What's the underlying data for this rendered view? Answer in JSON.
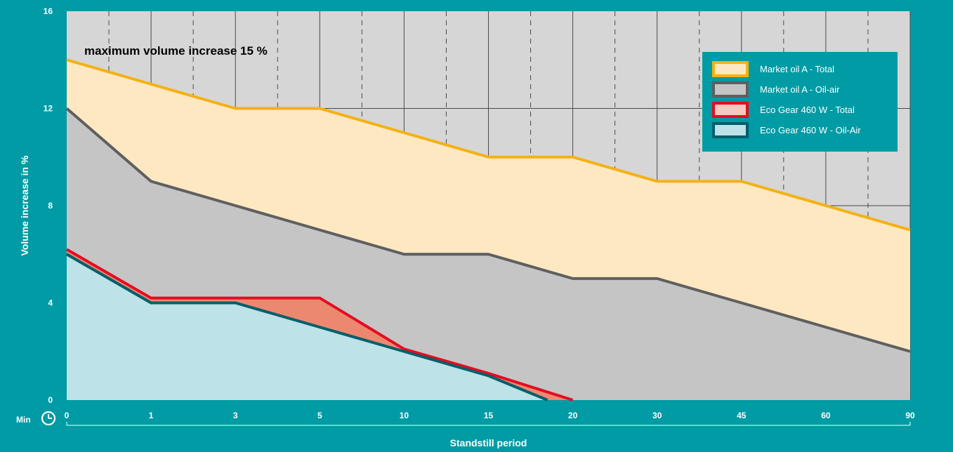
{
  "chart_data": {
    "type": "area",
    "annotation": "maximum volume increase 15 %",
    "xlabel": "Standstill period",
    "x_unit_label": "Min",
    "ylabel": "Volume increase in %",
    "categories": [
      "0",
      "1",
      "3",
      "5",
      "10",
      "15",
      "20",
      "30",
      "45",
      "60",
      "90"
    ],
    "ylim": [
      0,
      16
    ],
    "yticks": [
      0,
      4,
      8,
      12,
      16
    ],
    "grid": true,
    "legend_position": "top-right",
    "series": [
      {
        "name": "Market oil A - Total",
        "line_color": "#f5b113",
        "fill_color": "#fde8c2",
        "points": [
          [
            0,
            14
          ],
          [
            1,
            13
          ],
          [
            2,
            12
          ],
          [
            3,
            12
          ],
          [
            4,
            11
          ],
          [
            5,
            10
          ],
          [
            6,
            10
          ],
          [
            7,
            9
          ],
          [
            8,
            9
          ],
          [
            9,
            8
          ],
          [
            10,
            7
          ]
        ]
      },
      {
        "name": "Market oil A - Oil-air",
        "line_color": "#5f5f5f",
        "fill_color": "#c5c5c5",
        "points": [
          [
            0,
            12
          ],
          [
            1,
            9
          ],
          [
            2,
            8
          ],
          [
            3,
            7
          ],
          [
            4,
            6
          ],
          [
            5,
            6
          ],
          [
            6,
            5
          ],
          [
            7,
            5
          ],
          [
            8,
            4
          ],
          [
            9,
            3
          ],
          [
            10,
            2
          ]
        ]
      },
      {
        "name": "Eco Gear 460 W - Total",
        "line_color": "#e30d22",
        "fill_color": "#ec8870",
        "points": [
          [
            0,
            6.2
          ],
          [
            1,
            4.2
          ],
          [
            2,
            4.2
          ],
          [
            3,
            4.2
          ],
          [
            4,
            2.1
          ],
          [
            5,
            1.1
          ],
          [
            6,
            0
          ]
        ]
      },
      {
        "name": "Eco Gear 460 W - Oil-Air",
        "line_color": "#005f6a",
        "fill_color": "#bde2e7",
        "points": [
          [
            0,
            6
          ],
          [
            1,
            4
          ],
          [
            2,
            4
          ],
          [
            3,
            3
          ],
          [
            4,
            2
          ],
          [
            5,
            1
          ],
          [
            5.7,
            0
          ]
        ]
      }
    ]
  },
  "colors": {
    "frame": "#009ba4",
    "plot_bg": "#d6d6d6",
    "grid": "#4a4a4a"
  },
  "legend_swatch_fills": [
    "#fde8c2",
    "#c5c5c5",
    "#f8c7bd",
    "#bde2e7"
  ]
}
